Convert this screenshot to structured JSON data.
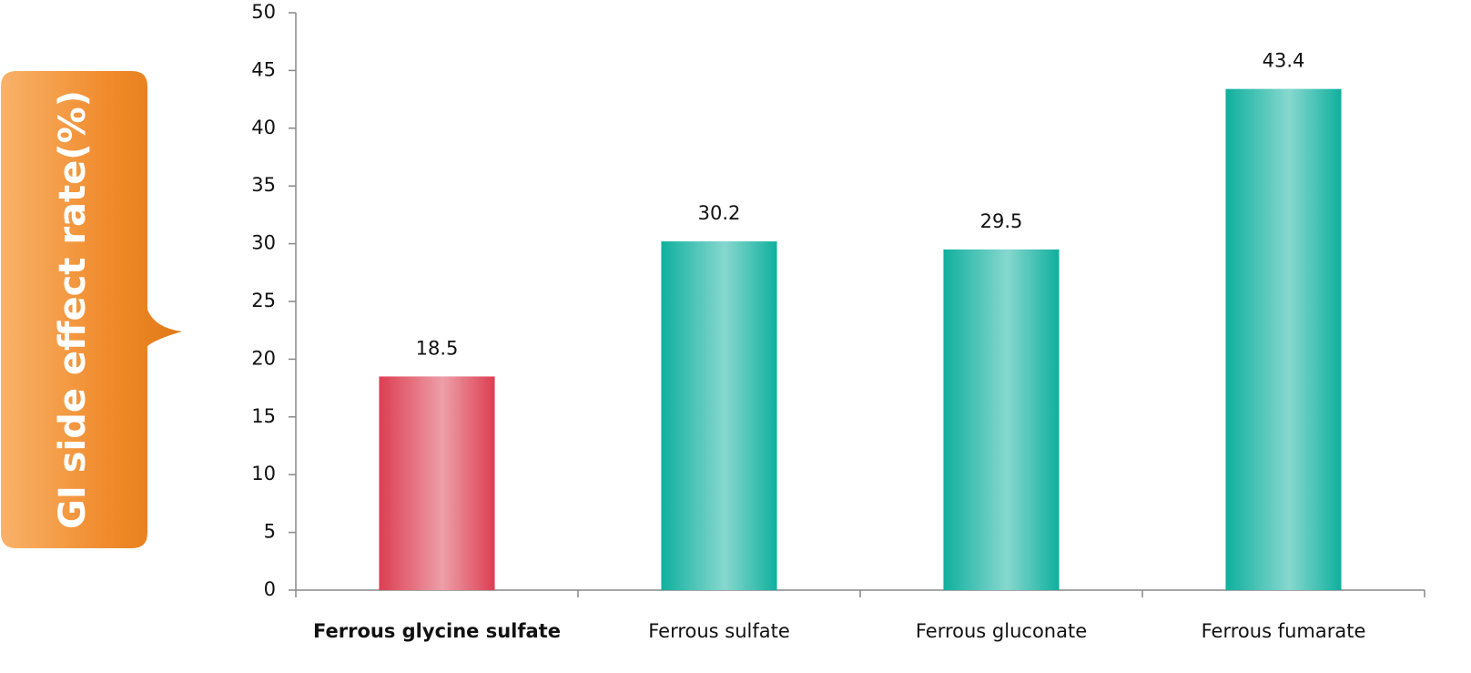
{
  "chart_data": {
    "type": "bar",
    "y_label": "GI side effect rate(%)",
    "categories": [
      "Ferrous glycine sulfate",
      "Ferrous sulfate",
      "Ferrous gluconate",
      "Ferrous fumarate"
    ],
    "values": [
      18.5,
      30.2,
      29.5,
      43.4
    ],
    "colors": [
      "#dc3e52",
      "#0fb09e",
      "#0fb09e",
      "#0fb09e"
    ],
    "ylim": [
      0,
      50
    ],
    "yticks": [
      0,
      5,
      10,
      15,
      20,
      25,
      30,
      35,
      40,
      45,
      50
    ]
  }
}
